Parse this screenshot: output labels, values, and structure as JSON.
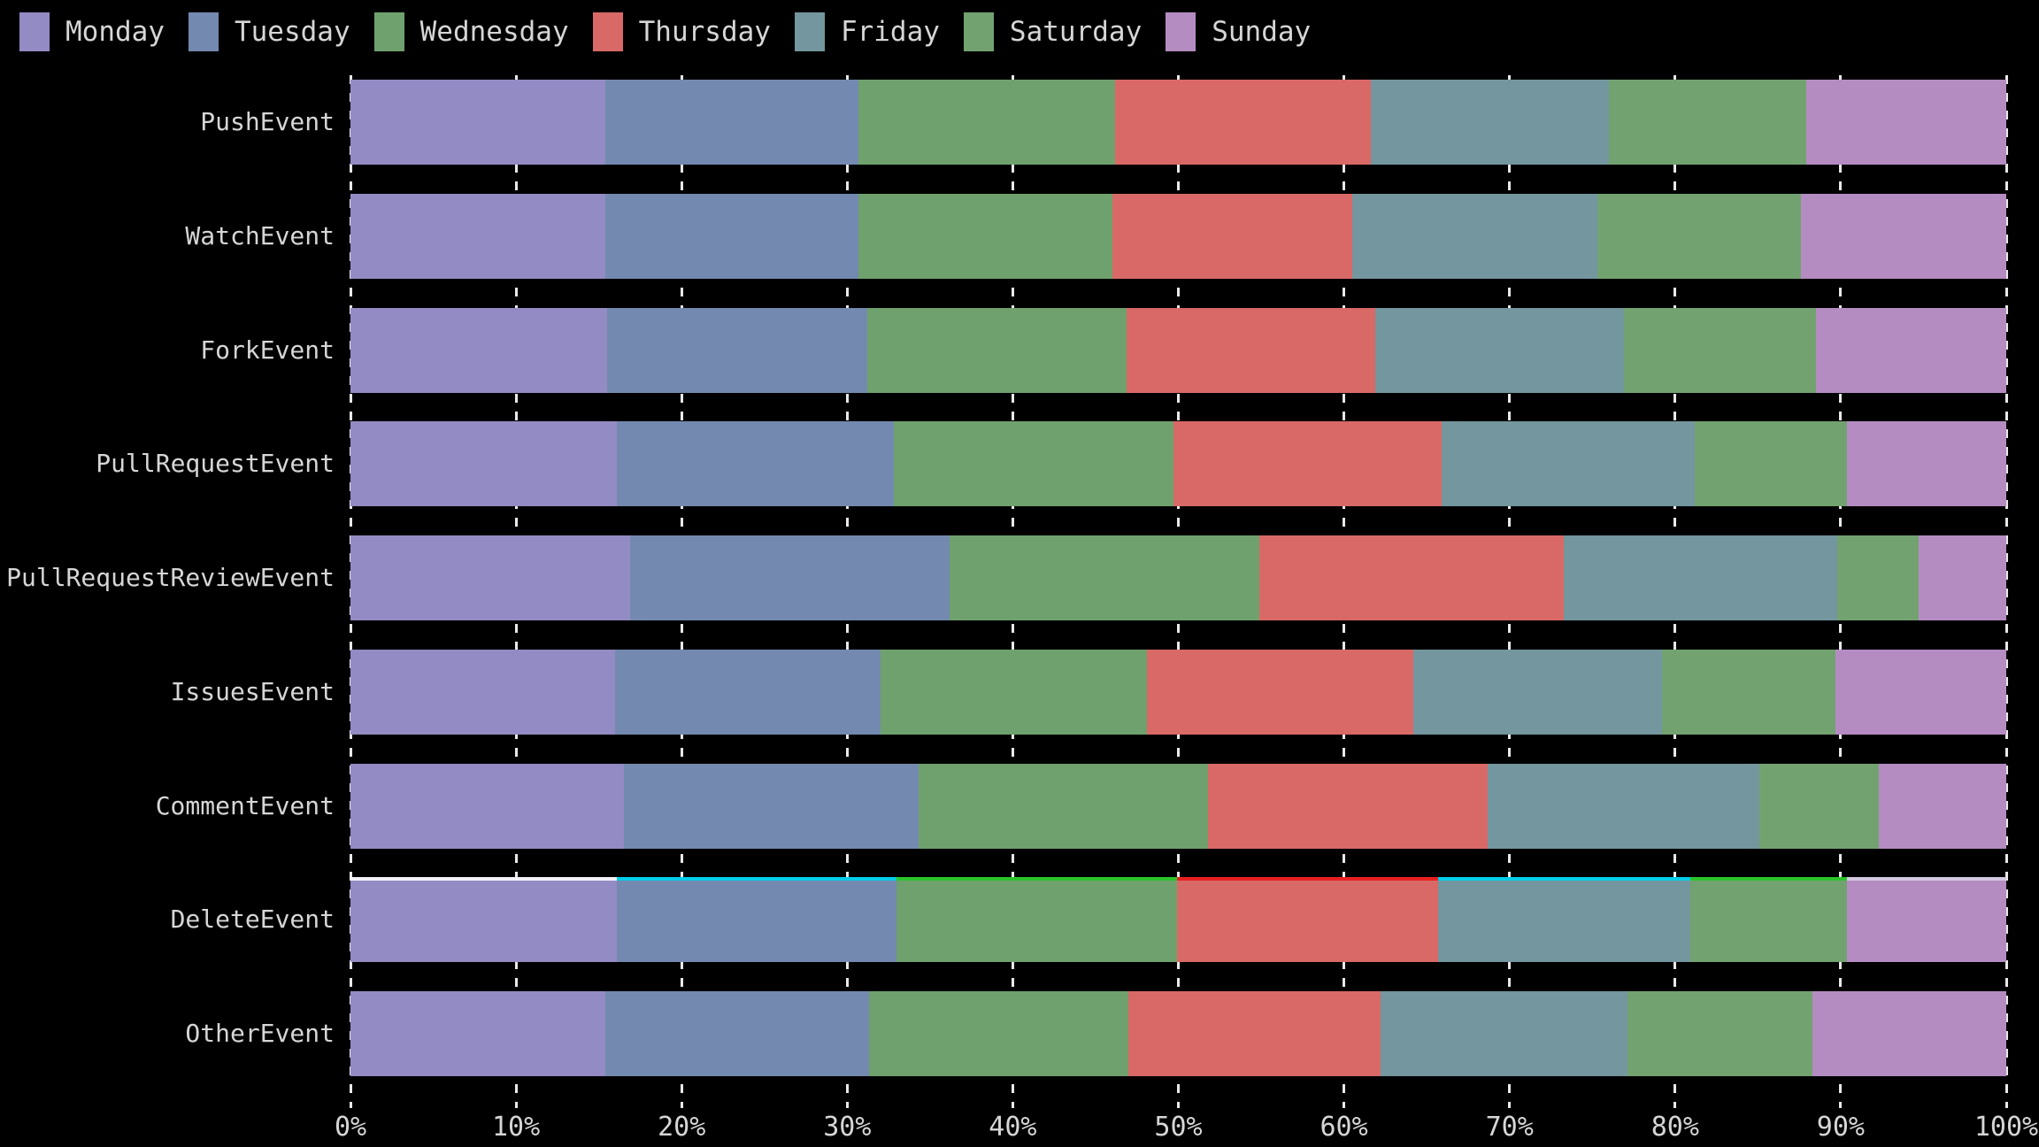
{
  "page": {
    "background": "#000000",
    "text_color": "#d6d6d6",
    "grid_color": "#e9e9e9"
  },
  "chart_data": {
    "type": "bar",
    "stacked": true,
    "orientation": "horizontal",
    "title": "",
    "xlabel": "",
    "ylabel": "",
    "unit": "%",
    "xlim": [
      0,
      100
    ],
    "grid": "dashed-vertical",
    "legend_position": "top-left",
    "x_tick_labels": [
      "0%",
      "10%",
      "20%",
      "30%",
      "40%",
      "50%",
      "60%",
      "70%",
      "80%",
      "90%",
      "100%"
    ],
    "categories": [
      "PushEvent",
      "WatchEvent",
      "ForkEvent",
      "PullRequestEvent",
      "PullRequestReviewEvent",
      "IssuesEvent",
      "CommentEvent",
      "DeleteEvent",
      "OtherEvent"
    ],
    "series": [
      {
        "name": "Monday",
        "color": "#938bc3",
        "values": [
          15.4,
          15.4,
          15.5,
          16.1,
          16.9,
          16.0,
          16.5,
          16.1,
          15.4
        ]
      },
      {
        "name": "Tuesday",
        "color": "#7489b0",
        "values": [
          15.3,
          15.3,
          15.7,
          16.7,
          19.3,
          16.0,
          17.8,
          16.9,
          15.9
        ]
      },
      {
        "name": "Wednesday",
        "color": "#6fa16e",
        "values": [
          15.5,
          15.3,
          15.7,
          16.9,
          18.7,
          16.1,
          17.5,
          16.9,
          15.7
        ]
      },
      {
        "name": "Thursday",
        "color": "#d96966",
        "values": [
          15.4,
          14.5,
          15.0,
          16.2,
          18.4,
          16.1,
          16.9,
          15.8,
          15.2
        ]
      },
      {
        "name": "Friday",
        "color": "#74969e",
        "values": [
          14.4,
          14.8,
          15.0,
          15.3,
          16.5,
          15.0,
          16.4,
          15.2,
          14.9
        ]
      },
      {
        "name": "Saturday",
        "color": "#73a271",
        "values": [
          11.9,
          12.3,
          11.6,
          9.2,
          4.9,
          10.5,
          7.2,
          9.5,
          11.2
        ]
      },
      {
        "name": "Sunday",
        "color": "#b58cc2",
        "values": [
          12.1,
          12.4,
          11.5,
          9.6,
          5.3,
          10.3,
          7.7,
          9.6,
          11.7
        ]
      }
    ],
    "highlight": {
      "row": "DeleteEvent",
      "top_edge_colors": [
        "#f4f2f8",
        "#00cdea",
        "#2bc52b",
        "#ea2020",
        "#00cdea",
        "#2bc52b",
        "#d5c8e2"
      ]
    }
  }
}
